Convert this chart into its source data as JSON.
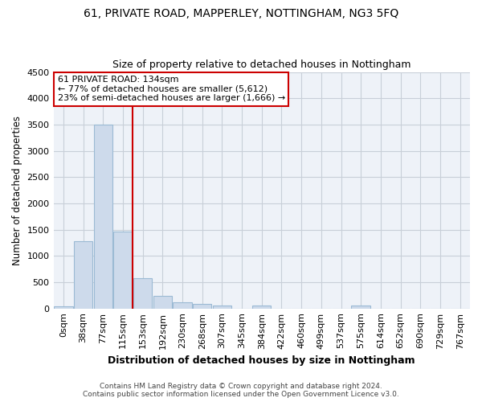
{
  "title1": "61, PRIVATE ROAD, MAPPERLEY, NOTTINGHAM, NG3 5FQ",
  "title2": "Size of property relative to detached houses in Nottingham",
  "xlabel": "Distribution of detached houses by size in Nottingham",
  "ylabel": "Number of detached properties",
  "bin_labels": [
    "0sqm",
    "38sqm",
    "77sqm",
    "115sqm",
    "153sqm",
    "192sqm",
    "230sqm",
    "268sqm",
    "307sqm",
    "345sqm",
    "384sqm",
    "422sqm",
    "460sqm",
    "499sqm",
    "537sqm",
    "575sqm",
    "614sqm",
    "652sqm",
    "690sqm",
    "729sqm",
    "767sqm"
  ],
  "bar_heights": [
    40,
    1280,
    3500,
    1470,
    575,
    235,
    110,
    80,
    50,
    0,
    50,
    0,
    0,
    0,
    0,
    50,
    0,
    0,
    0,
    0,
    0
  ],
  "bar_color": "#cddaeb",
  "bar_edgecolor": "#9bbad4",
  "ylim": [
    0,
    4500
  ],
  "yticks": [
    0,
    500,
    1000,
    1500,
    2000,
    2500,
    3000,
    3500,
    4000,
    4500
  ],
  "vline_x": 3.0,
  "annotation_text1": "61 PRIVATE ROAD: 134sqm",
  "annotation_text2": "← 77% of detached houses are smaller (5,612)",
  "annotation_text3": "23% of semi-detached houses are larger (1,666) →",
  "vline_color": "#cc0000",
  "annotation_box_edgecolor": "#cc0000",
  "footer1": "Contains HM Land Registry data © Crown copyright and database right 2024.",
  "footer2": "Contains public sector information licensed under the Open Government Licence v3.0.",
  "plot_bg_color": "#eef2f8",
  "grid_color": "#c8cfd8"
}
